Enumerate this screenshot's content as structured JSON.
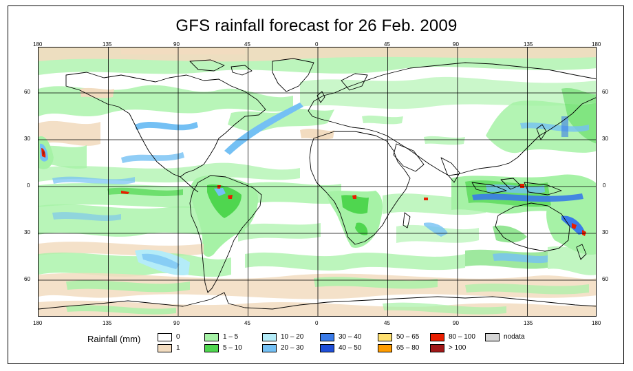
{
  "title": "GFS rainfall forecast for 26 Feb. 2009",
  "lon_ticks": [
    "180",
    "135",
    "90",
    "45",
    "0",
    "45",
    "90",
    "135",
    "180"
  ],
  "lat_ticks": [
    "60",
    "30",
    "0",
    "30",
    "60"
  ],
  "legend": {
    "title": "Rainfall (mm)",
    "items": [
      {
        "label": "0",
        "color": "#ffffff"
      },
      {
        "label": "1",
        "color": "#f2dcc0"
      },
      {
        "label": "1 – 5",
        "color": "#a6f2a6"
      },
      {
        "label": "5 – 10",
        "color": "#4fd64f"
      },
      {
        "label": "10 – 20",
        "color": "#b4ecf8"
      },
      {
        "label": "20 – 30",
        "color": "#74c0f4"
      },
      {
        "label": "30 – 40",
        "color": "#3a7be8"
      },
      {
        "label": "40 – 50",
        "color": "#1f4fd8"
      },
      {
        "label": "50 – 65",
        "color": "#ffe070"
      },
      {
        "label": "65 – 80",
        "color": "#ff9c00"
      },
      {
        "label": "80 – 100",
        "color": "#e81e00"
      },
      {
        "label": "> 100",
        "color": "#a01818"
      },
      {
        "label": "nodata",
        "color": "#d6d6d6"
      }
    ]
  }
}
